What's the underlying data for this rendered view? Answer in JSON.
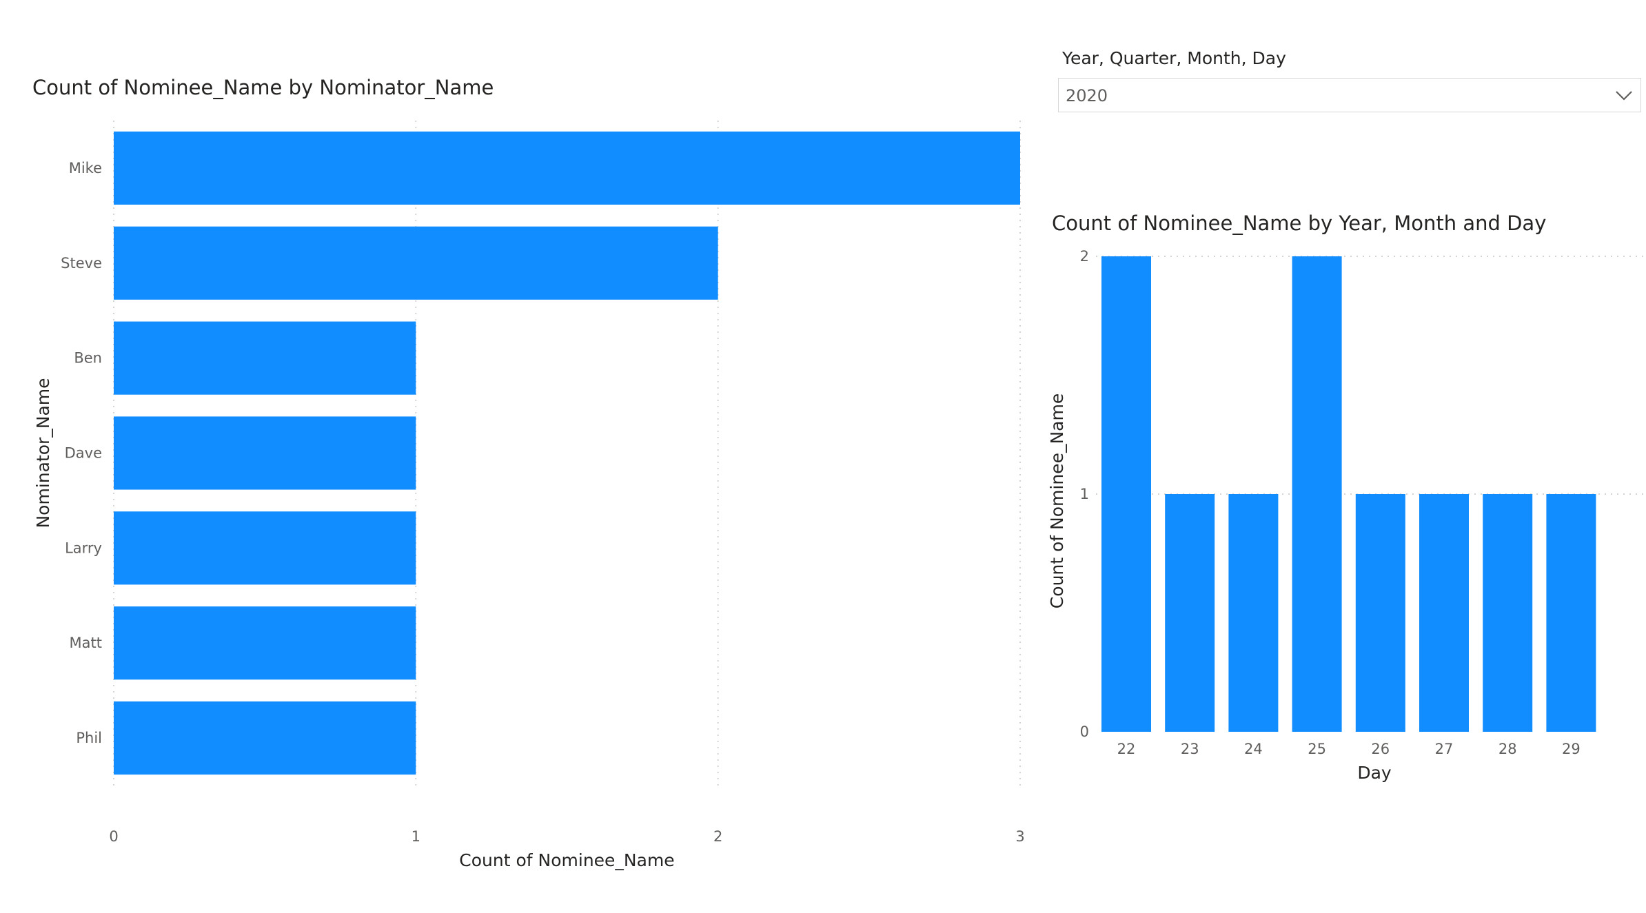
{
  "slicer": {
    "header": "Year, Quarter, Month, Day",
    "selected": "2020",
    "icon": "chevron-down-icon"
  },
  "colors": {
    "bar": "#118dff",
    "grid": "#c8c6c4",
    "text": "#252423",
    "tick": "#605e5c"
  },
  "chart_data": [
    {
      "type": "bar",
      "orientation": "horizontal",
      "title": "Count of Nominee_Name by Nominator_Name",
      "categories": [
        "Mike",
        "Steve",
        "Ben",
        "Dave",
        "Larry",
        "Matt",
        "Phil"
      ],
      "values": [
        3,
        2,
        1,
        1,
        1,
        1,
        1
      ],
      "xlabel": "Count of Nominee_Name",
      "ylabel": "Nominator_Name",
      "xlim": [
        0,
        3
      ],
      "xticks": [
        0,
        1,
        2,
        3
      ],
      "grid": true
    },
    {
      "type": "bar",
      "orientation": "vertical",
      "title": "Count of Nominee_Name by Year, Month and Day",
      "categories": [
        "22",
        "23",
        "24",
        "25",
        "26",
        "27",
        "28",
        "29"
      ],
      "values": [
        2,
        1,
        1,
        2,
        1,
        1,
        1,
        1
      ],
      "xlabel": "Day",
      "ylabel": "Count of Nominee_Name",
      "ylim": [
        0,
        2
      ],
      "yticks": [
        0,
        1,
        2
      ],
      "grid": true
    }
  ]
}
